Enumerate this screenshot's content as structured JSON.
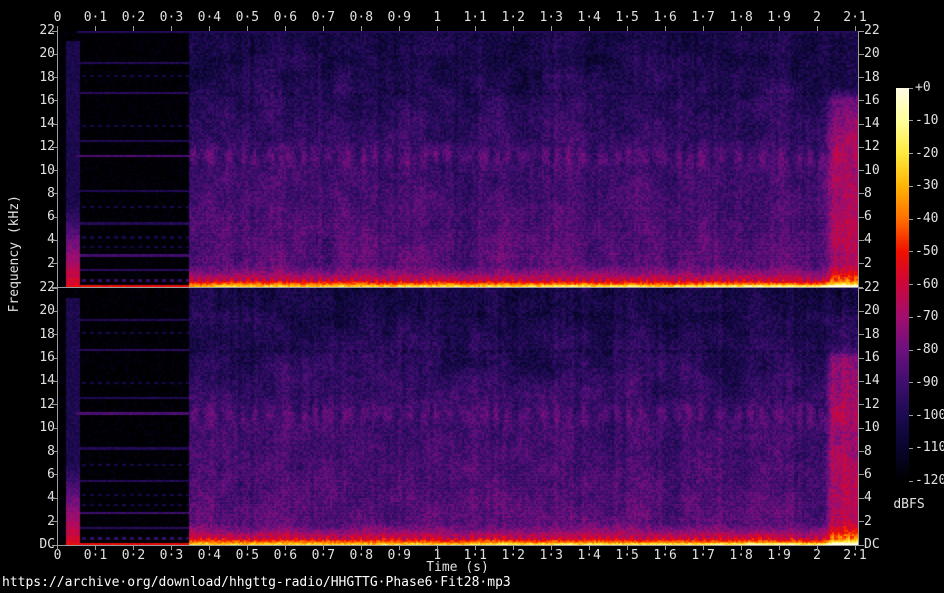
{
  "file_title": "https://archive·org/download/hhgttg-radio/HHGTTG·Phase6·Fit28·mp3",
  "axes": {
    "x_title": "Time (s)",
    "y_title": "Frequency (kHz)",
    "time_labels": [
      "0",
      "0·1",
      "0·2",
      "0·3",
      "0·4",
      "0·5",
      "0·6",
      "0·7",
      "0·8",
      "0·9",
      "1",
      "1·1",
      "1·2",
      "1·3",
      "1·4",
      "1·5",
      "1·6",
      "1·7",
      "1·8",
      "1·9",
      "2",
      "2·1"
    ],
    "freq_labels": [
      "22",
      "20",
      "18",
      "16",
      "14",
      "12",
      "10",
      "8",
      "6",
      "4",
      "2"
    ],
    "dc_label": "DC"
  },
  "colorbar": {
    "unit_label": "dBFS",
    "tick_labels": [
      "+0",
      "-10",
      "-20",
      "-30",
      "-40",
      "-50",
      "-60",
      "-70",
      "-80",
      "-90",
      "-100",
      "-110",
      "-120"
    ]
  },
  "chart_data": {
    "type": "heatmap",
    "subtype": "audio-spectrogram",
    "channels": 2,
    "title": "https://archive·org/download/hhgttg-radio/HHGTTG·Phase6·Fit28·mp3",
    "xlabel": "Time (s)",
    "ylabel": "Frequency (kHz)",
    "x_range_s": [
      0,
      2.107
    ],
    "y_range_khz": [
      0,
      22
    ],
    "color_range_dbfs": [
      0,
      -120
    ],
    "legend_position": "right",
    "grid": false,
    "palette": [
      {
        "db": 0,
        "color": "#fffce4"
      },
      {
        "db": -10,
        "color": "#ffff9a"
      },
      {
        "db": -20,
        "color": "#ffe93e"
      },
      {
        "db": -30,
        "color": "#ffb405"
      },
      {
        "db": -40,
        "color": "#ff6e00"
      },
      {
        "db": -50,
        "color": "#f01000"
      },
      {
        "db": -60,
        "color": "#cc063c"
      },
      {
        "db": -70,
        "color": "#a00e6e"
      },
      {
        "db": -80,
        "color": "#6c107e"
      },
      {
        "db": -90,
        "color": "#3e0e6e"
      },
      {
        "db": -100,
        "color": "#1c0a50"
      },
      {
        "db": -110,
        "color": "#08052c"
      },
      {
        "db": -120,
        "color": "#000000"
      }
    ],
    "features": {
      "silence_end_s": 0.345,
      "transient_s": [
        0.022,
        0.058
      ],
      "base_profile": [
        [
          22,
          -103.5
        ],
        [
          17,
          -99
        ],
        [
          12.3,
          -92
        ],
        [
          6.8,
          -88.5
        ],
        [
          1.9,
          -84.5
        ],
        [
          1.1,
          -72
        ],
        [
          0.45,
          -50
        ],
        [
          0.18,
          -33
        ],
        [
          0,
          -24
        ]
      ],
      "blob_band": {
        "khz": 11.2,
        "amp_db": 9
      },
      "dark_dotted_line_khz": 16.6,
      "harmonic_lines": [
        {
          "khz": 19.3,
          "db": -99,
          "dash": false
        },
        {
          "khz": 18.2,
          "db": -104,
          "dash": true
        },
        {
          "khz": 16.7,
          "db": -97,
          "dash": false
        },
        {
          "khz": 13.9,
          "db": -104,
          "dash": true
        },
        {
          "khz": 12.6,
          "db": -100,
          "dash": false
        },
        {
          "khz": 11.3,
          "db": -88,
          "dash": false
        },
        {
          "khz": 8.3,
          "db": -100,
          "dash": false
        },
        {
          "khz": 6.9,
          "db": -103,
          "dash": true
        },
        {
          "khz": 5.5,
          "db": -99,
          "dash": false
        },
        {
          "khz": 4.3,
          "db": -104,
          "dash": true
        },
        {
          "khz": 3.5,
          "db": -104,
          "dash": true
        },
        {
          "khz": 2.75,
          "db": -91,
          "dash": false
        },
        {
          "khz": 1.5,
          "db": -97,
          "dash": false
        },
        {
          "khz": 0.6,
          "db": -94,
          "dash": true
        }
      ],
      "right_column": {
        "start_s": 2.02,
        "max_khz": 17.2,
        "add_db": 20
      }
    }
  }
}
